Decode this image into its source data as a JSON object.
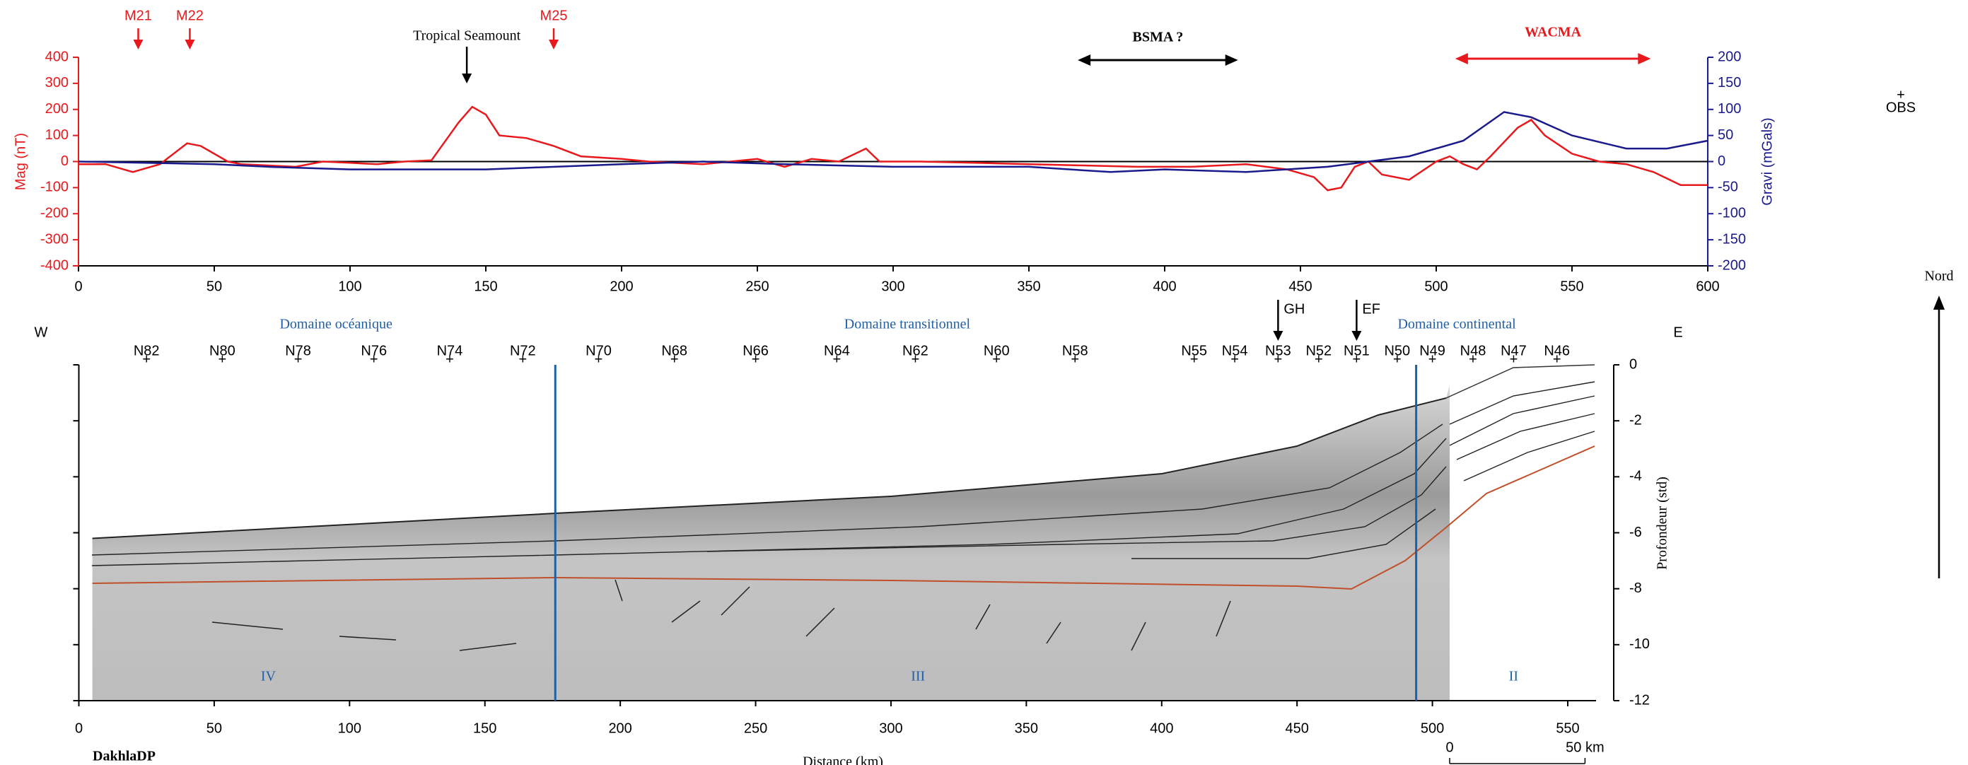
{
  "chart_data": [
    {
      "type": "line",
      "ylabel": "Mag (nT)",
      "y2label": "Gravi (mGals)",
      "xlim": [
        0,
        600
      ],
      "xticks": [
        0,
        50,
        100,
        150,
        200,
        250,
        300,
        350,
        400,
        450,
        500,
        550,
        600
      ],
      "ylim": [
        -400,
        400
      ],
      "yticks": [
        -400,
        -300,
        -200,
        -100,
        0,
        100,
        200,
        300,
        400
      ],
      "y2lim": [
        -200,
        200
      ],
      "y2ticks": [
        -200,
        -150,
        -100,
        -50,
        0,
        50,
        100,
        150,
        200
      ],
      "zero_line": true,
      "series": [
        {
          "color": "#e8191d",
          "x": [
            0,
            10,
            20,
            30,
            40,
            45,
            55,
            60,
            80,
            90,
            100,
            110,
            120,
            130,
            140,
            145,
            150,
            155,
            165,
            175,
            185,
            200,
            210,
            230,
            250,
            260,
            270,
            280,
            290,
            295,
            310,
            330,
            350,
            370,
            390,
            410,
            430,
            445,
            455,
            460,
            465,
            470,
            475,
            480,
            490,
            500,
            505,
            510,
            515,
            520,
            530,
            535,
            540,
            550,
            560,
            570,
            580,
            590,
            600
          ],
          "values": [
            -10,
            -10,
            -40,
            -10,
            70,
            60,
            0,
            -10,
            -20,
            0,
            -5,
            -10,
            0,
            5,
            150,
            210,
            180,
            100,
            90,
            60,
            20,
            10,
            0,
            -10,
            10,
            -20,
            10,
            0,
            50,
            0,
            0,
            -5,
            -10,
            -15,
            -20,
            -20,
            -10,
            -30,
            -60,
            -110,
            -100,
            -20,
            0,
            -50,
            -70,
            0,
            20,
            -10,
            -30,
            20,
            130,
            160,
            100,
            30,
            0,
            -10,
            -40,
            -90,
            -90
          ]
        },
        {
          "color": "#1a1a8c",
          "axis": "y2",
          "x": [
            0,
            50,
            70,
            100,
            150,
            200,
            230,
            260,
            300,
            350,
            380,
            400,
            430,
            460,
            490,
            510,
            525,
            535,
            550,
            570,
            585,
            600
          ],
          "values": [
            0,
            -5,
            -10,
            -15,
            -15,
            -5,
            0,
            -5,
            -10,
            -10,
            -20,
            -15,
            -20,
            -10,
            10,
            40,
            95,
            85,
            50,
            25,
            25,
            40
          ]
        }
      ],
      "annotations": [
        {
          "text": "M21",
          "x": 22,
          "color": "#e8191d"
        },
        {
          "text": "M22",
          "x": 41,
          "color": "#e8191d"
        },
        {
          "text": "M25",
          "x": 175,
          "color": "#e8191d"
        },
        {
          "text": "Tropical Seamount",
          "x": 143,
          "color": "#000000"
        }
      ],
      "ranges": [
        {
          "text": "BSMA ?",
          "x": [
            368,
            427
          ],
          "color": "#000000"
        },
        {
          "text": "WACMA",
          "x": [
            507,
            579
          ],
          "color": "#e8191d"
        }
      ]
    },
    {
      "type": "section",
      "title": "DakhlaDP",
      "xlabel": "Distance (km)",
      "ylabel": "Profondeur (std)",
      "xlim": [
        0,
        560
      ],
      "xticks": [
        0,
        50,
        100,
        150,
        200,
        250,
        300,
        350,
        400,
        450,
        500,
        550
      ],
      "ylim": [
        -12,
        0
      ],
      "yticks": [
        0,
        -2,
        -4,
        -6,
        -8,
        -10,
        -12
      ],
      "stations": [
        {
          "name": "N82",
          "x": 25
        },
        {
          "name": "N80",
          "x": 53
        },
        {
          "name": "N78",
          "x": 81
        },
        {
          "name": "N76",
          "x": 109
        },
        {
          "name": "N74",
          "x": 137
        },
        {
          "name": "N72",
          "x": 164
        },
        {
          "name": "N70",
          "x": 192
        },
        {
          "name": "N68",
          "x": 220
        },
        {
          "name": "N66",
          "x": 250
        },
        {
          "name": "N64",
          "x": 280
        },
        {
          "name": "N62",
          "x": 309
        },
        {
          "name": "N60",
          "x": 339
        },
        {
          "name": "N58",
          "x": 368
        },
        {
          "name": "N55",
          "x": 412
        },
        {
          "name": "N54",
          "x": 427
        },
        {
          "name": "N53",
          "x": 443
        },
        {
          "name": "N52",
          "x": 458
        },
        {
          "name": "N51",
          "x": 472
        },
        {
          "name": "N50",
          "x": 487
        },
        {
          "name": "N49",
          "x": 500
        },
        {
          "name": "N48",
          "x": 515
        },
        {
          "name": "N47",
          "x": 530
        },
        {
          "name": "N46",
          "x": 546
        }
      ],
      "boundaries": [
        176,
        494
      ],
      "domains": [
        {
          "label": "Domaine océanique",
          "x": 95
        },
        {
          "label": "Domaine transitionnel",
          "x": 306
        },
        {
          "label": "Domaine continental",
          "x": 509
        }
      ],
      "zones": [
        {
          "label": "IV",
          "x": 70
        },
        {
          "label": "III",
          "x": 310
        },
        {
          "label": "II",
          "x": 530
        }
      ],
      "markers": [
        {
          "label": "GH",
          "x": 443
        },
        {
          "label": "EF",
          "x": 472
        }
      ],
      "west": "W",
      "east": "E",
      "north": "Nord",
      "obs_legend": "OBS",
      "scale_bar": [
        {
          "value": 0,
          "label": "0"
        },
        {
          "value": 50,
          "label": "50 km"
        }
      ]
    }
  ]
}
